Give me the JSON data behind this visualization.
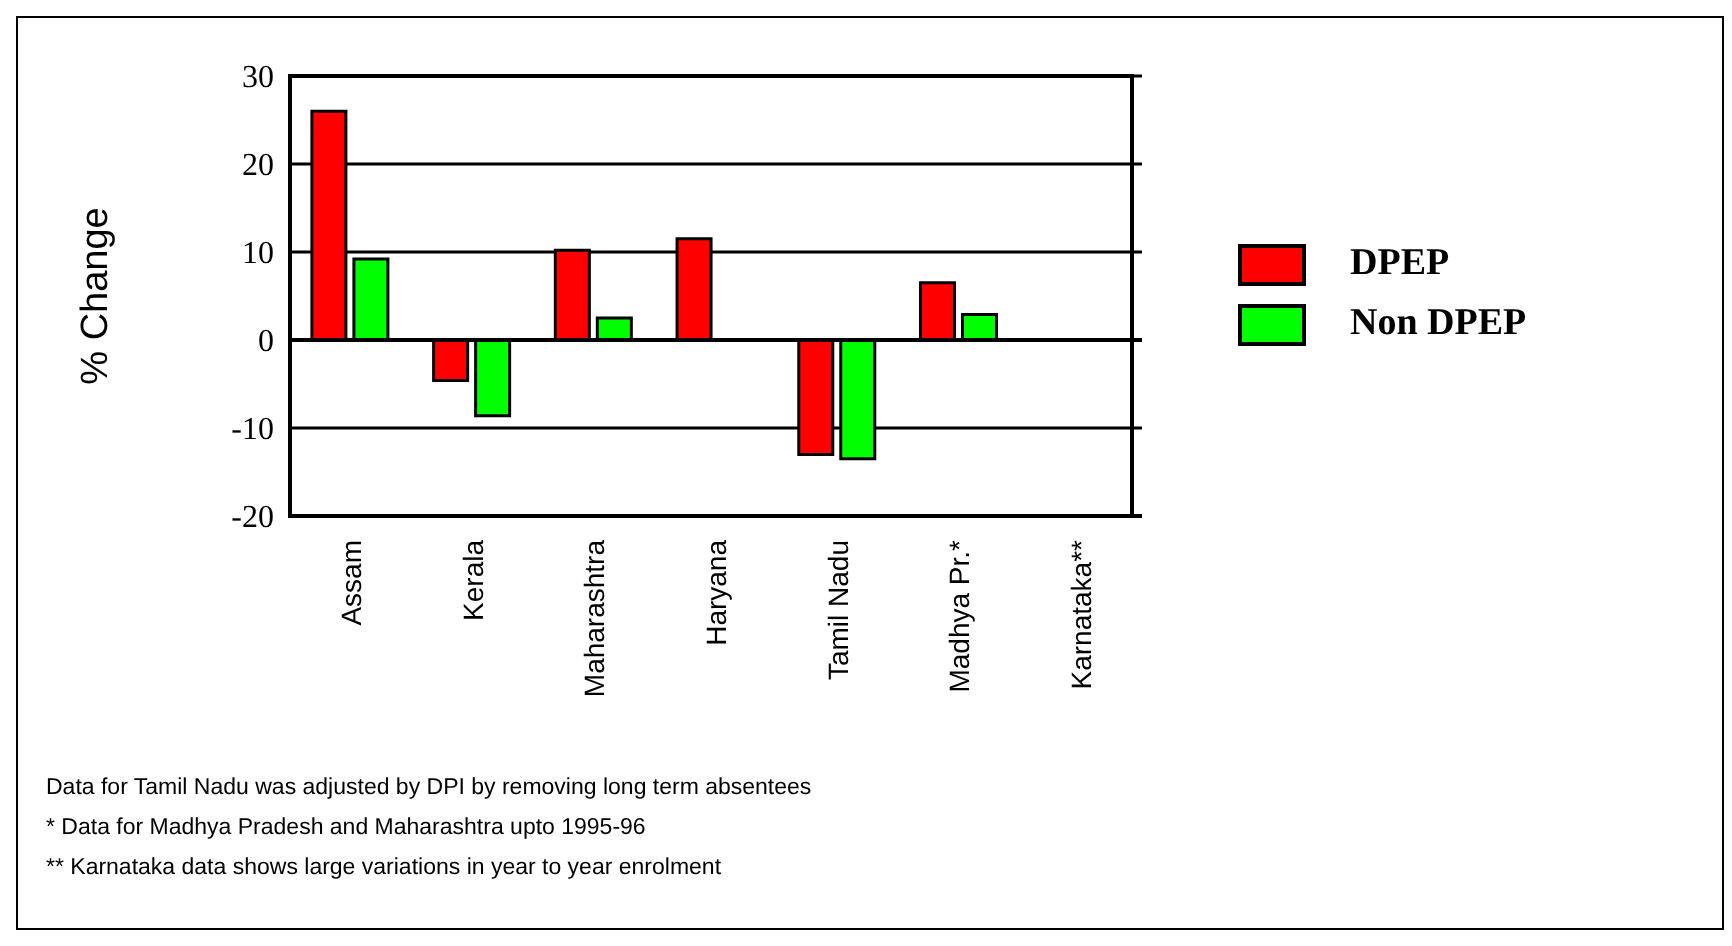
{
  "chart_data": {
    "type": "bar",
    "ylabel": "% Change",
    "categories": [
      "Assam",
      "Kerala",
      "Maharashtra",
      "Haryana",
      "Tamil Nadu",
      "Madhya Pr.*",
      "Karnataka**"
    ],
    "series": [
      {
        "name": "DPEP",
        "color": "#ff0000",
        "values": [
          26,
          -4.6,
          10.2,
          11.5,
          -13,
          6.5,
          null
        ]
      },
      {
        "name": "Non DPEP",
        "color": "#00ff00",
        "values": [
          9.2,
          -8.6,
          2.5,
          null,
          -13.5,
          2.9,
          null
        ]
      }
    ],
    "ylim": [
      -20,
      30
    ],
    "yticks": [
      -20,
      -10,
      0,
      10,
      20,
      30
    ],
    "grid": "y",
    "legend": "right",
    "annotations": [
      "Data for Tamil Nadu was adjusted by DPI by removing long term absentees",
      "* Data for Madhya Pradesh and Maharashtra upto 1995-96",
      "** Karnataka data shows large variations in year to year enrolment"
    ]
  }
}
